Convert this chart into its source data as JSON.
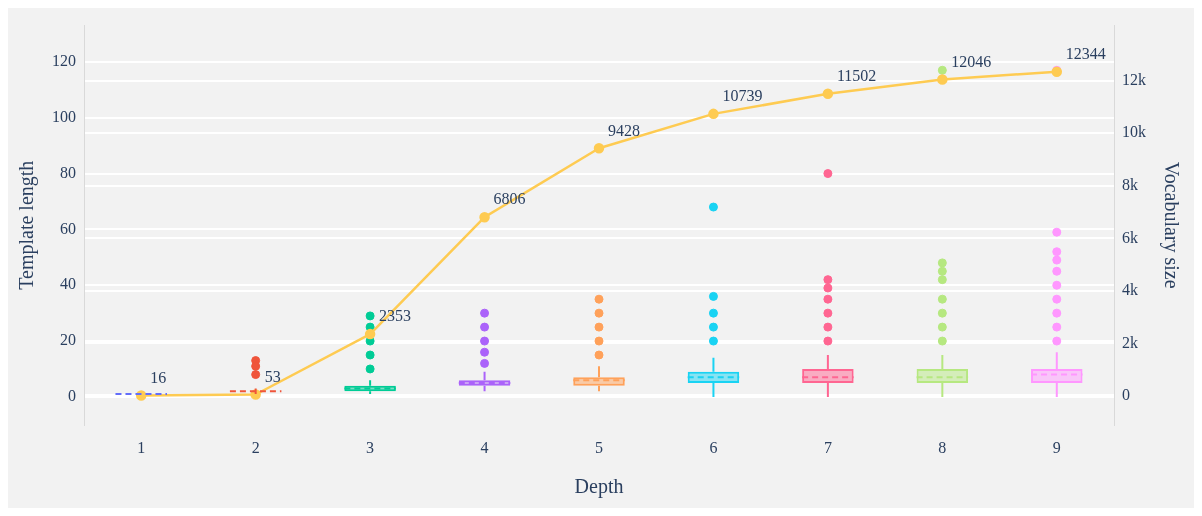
{
  "chart_data": {
    "type": "box",
    "xlabel": "Depth",
    "ylabel": "Template length",
    "y2label": "Vocabulary size",
    "categories": [
      "1",
      "2",
      "3",
      "4",
      "5",
      "6",
      "7",
      "8",
      "9"
    ],
    "ylim": [
      -10,
      133
    ],
    "yticks": [
      0,
      20,
      40,
      60,
      80,
      100,
      120
    ],
    "y2lim": [
      -1100,
      14100
    ],
    "y2ticks": [
      0,
      {
        "value": 2000,
        "label": "2k"
      },
      {
        "value": 4000,
        "label": "4k"
      },
      {
        "value": 6000,
        "label": "6k"
      },
      {
        "value": 8000,
        "label": "8k"
      },
      {
        "value": 10000,
        "label": "10k"
      },
      {
        "value": 12000,
        "label": "12k"
      }
    ],
    "grid": "y",
    "legend": false,
    "series": [
      {
        "type": "box",
        "colors": [
          "#636efa",
          "#ef553b",
          "#00cc96",
          "#ab63fa",
          "#ffa15a",
          "#19d3f3",
          "#ff6692",
          "#b6e880",
          "#ff97ff"
        ],
        "boxes": [
          {
            "low": 1,
            "q1": 1,
            "median": 1,
            "q3": 1,
            "high": 1
          },
          {
            "low": 1,
            "q1": 2,
            "median": 2,
            "q3": 2,
            "high": 3,
            "outliers": [
              8,
              11,
              13
            ]
          },
          {
            "low": 1,
            "q1": 2,
            "median": 3,
            "q3": 4,
            "high": 6,
            "outliers": [
              10,
              15,
              20,
              25,
              29
            ]
          },
          {
            "low": 2,
            "q1": 4,
            "median": 5,
            "q3": 6,
            "high": 9,
            "outliers": [
              12,
              16,
              20,
              25,
              30
            ]
          },
          {
            "low": 2,
            "q1": 4,
            "median": 6,
            "q3": 7,
            "high": 11,
            "outliers": [
              15,
              20,
              25,
              30,
              35
            ]
          },
          {
            "low": 0,
            "q1": 5,
            "median": 7,
            "q3": 9,
            "high": 14,
            "outliers": [
              20,
              25,
              30,
              36,
              68
            ]
          },
          {
            "low": 0,
            "q1": 5,
            "median": 7,
            "q3": 10,
            "high": 15,
            "outliers": [
              20,
              25,
              30,
              35,
              39,
              42,
              80
            ]
          },
          {
            "low": 0,
            "q1": 5,
            "median": 7,
            "q3": 10,
            "high": 15,
            "outliers": [
              20,
              25,
              30,
              35,
              42,
              45,
              48,
              117
            ]
          },
          {
            "low": 0,
            "q1": 5,
            "median": 8,
            "q3": 10,
            "high": 16,
            "outliers": [
              20,
              25,
              30,
              35,
              40,
              45,
              49,
              52,
              59,
              117
            ]
          }
        ]
      },
      {
        "type": "line",
        "axis": "y2",
        "color": "#fecb52",
        "marker": "circle",
        "values": [
          16,
          53,
          2353,
          6806,
          9428,
          10739,
          11502,
          12046,
          12344
        ],
        "value_labels": [
          "16",
          "53",
          "2353",
          "6806",
          "9428",
          "10739",
          "11502",
          "12046",
          "12344"
        ]
      }
    ]
  }
}
